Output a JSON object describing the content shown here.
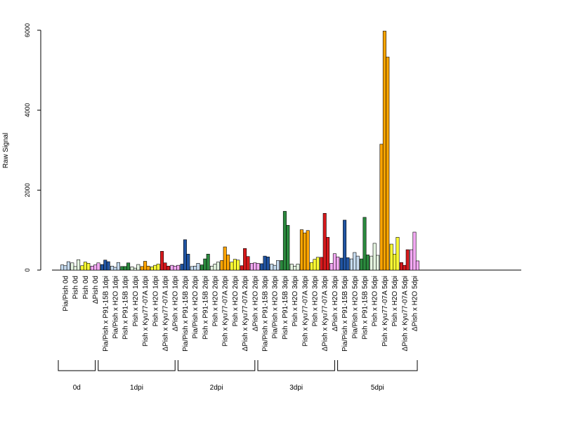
{
  "chart_data": {
    "type": "bar",
    "ylabel": "Raw Signal",
    "ylim": [
      0,
      6000
    ],
    "yticks": [
      0,
      2000,
      4000,
      6000
    ],
    "grid": false,
    "categories": [
      "Pia/Pish 0d",
      "Pish 0d",
      "Pish 0d",
      "ΔPish 0d",
      "Pia/Pish x P91-15B 1dpi",
      "Pia/Pish x H2O 1dpi",
      "Pish x P91-15B 1dpi",
      "Pish x H2O 1dpi",
      "Pish x Kyu77-07A 1dpi",
      "Pish x H2O 1dpi",
      "ΔPish x Kyu77-07A 1dpi",
      "ΔPish x H2O 1dpi",
      "Pia/Pish x P91-15B 2dpi",
      "Pia/Pish x H2O 2dpi",
      "Pish x P91-15B 2dpi",
      "Pish x H2O 2dpi",
      "Pish x Kyu77-07A 2dpi",
      "Pish x H2O 2dpi",
      "ΔPish x Kyu77-07A 2dpi",
      "ΔPish x H2O 2dpi",
      "Pia/Pish x P91-15B 3dpi",
      "Pia/Pish x H2O 3dpi",
      "Pish x P91-15B 3dpi",
      "Pish x H2O 3dpi",
      "Pish x Kyu77-07A 3dpi",
      "Pish x H2O 3dpi",
      "ΔPish x Kyu77-07A 3dpi",
      "ΔPish x H2O 3dpi",
      "Pia/Pish x P91-15B 5dpi",
      "Pia/Pish x H2O 5dpi",
      "Pish x P91-15B 5dpi",
      "Pish x H2O 5dpi",
      "Pish x Kyu77-07A 5dpi",
      "Pish x H2O 5dpi",
      "ΔPish x Kyu77-07A 5dpi",
      "ΔPish x H2O 5dpi"
    ],
    "colors": [
      "#C6DBEF",
      "#E5F5E0",
      "#FFFF33",
      "#F4A9F4",
      "#2155A3",
      "#C6DBEF",
      "#2B8A3E",
      "#E5F5E0",
      "#FFA500",
      "#FFFF33",
      "#D7191C",
      "#F4A9F4",
      "#2155A3",
      "#C6DBEF",
      "#2B8A3E",
      "#E5F5E0",
      "#FFA500",
      "#FFFF33",
      "#D7191C",
      "#F4A9F4",
      "#2155A3",
      "#C6DBEF",
      "#2B8A3E",
      "#E5F5E0",
      "#FFA500",
      "#FFFF33",
      "#D7191C",
      "#F4A9F4",
      "#2155A3",
      "#C6DBEF",
      "#2B8A3E",
      "#E5F5E0",
      "#FFA500",
      "#FFFF33",
      "#D7191C",
      "#F4A9F4"
    ],
    "values": [
      [
        130,
        110,
        210
      ],
      [
        180,
        90,
        260
      ],
      [
        110,
        200,
        170
      ],
      [
        100,
        130,
        180
      ],
      [
        140,
        250,
        210
      ],
      [
        100,
        70,
        190
      ],
      [
        90,
        90,
        180
      ],
      [
        80,
        50,
        140
      ],
      [
        90,
        220,
        100
      ],
      [
        80,
        120,
        150
      ],
      [
        470,
        180,
        100
      ],
      [
        120,
        100,
        120
      ],
      [
        150,
        760,
        400
      ],
      [
        90,
        100,
        170
      ],
      [
        130,
        280,
        400
      ],
      [
        100,
        150,
        200
      ],
      [
        240,
        580,
        380
      ],
      [
        200,
        270,
        250
      ],
      [
        110,
        540,
        340
      ],
      [
        170,
        180,
        170
      ],
      [
        160,
        350,
        330
      ],
      [
        150,
        120,
        240
      ],
      [
        240,
        1470,
        1120
      ],
      [
        150,
        100,
        150
      ],
      [
        1010,
        930,
        990
      ],
      [
        190,
        270,
        320
      ],
      [
        320,
        1420,
        820
      ],
      [
        170,
        410,
        330
      ],
      [
        300,
        1250,
        310
      ],
      [
        280,
        440,
        350
      ],
      [
        280,
        1320,
        380
      ],
      [
        350,
        670,
        370
      ],
      [
        3150,
        5980,
        5330
      ],
      [
        650,
        400,
        820
      ],
      [
        190,
        120,
        510
      ],
      [
        510,
        950,
        230
      ]
    ],
    "groups": [
      {
        "label": "0d",
        "start": 0,
        "end": 3
      },
      {
        "label": "1dpi",
        "start": 4,
        "end": 11
      },
      {
        "label": "2dpi",
        "start": 12,
        "end": 19
      },
      {
        "label": "3dpi",
        "start": 20,
        "end": 27
      },
      {
        "label": "5dpi",
        "start": 28,
        "end": 35
      }
    ]
  }
}
